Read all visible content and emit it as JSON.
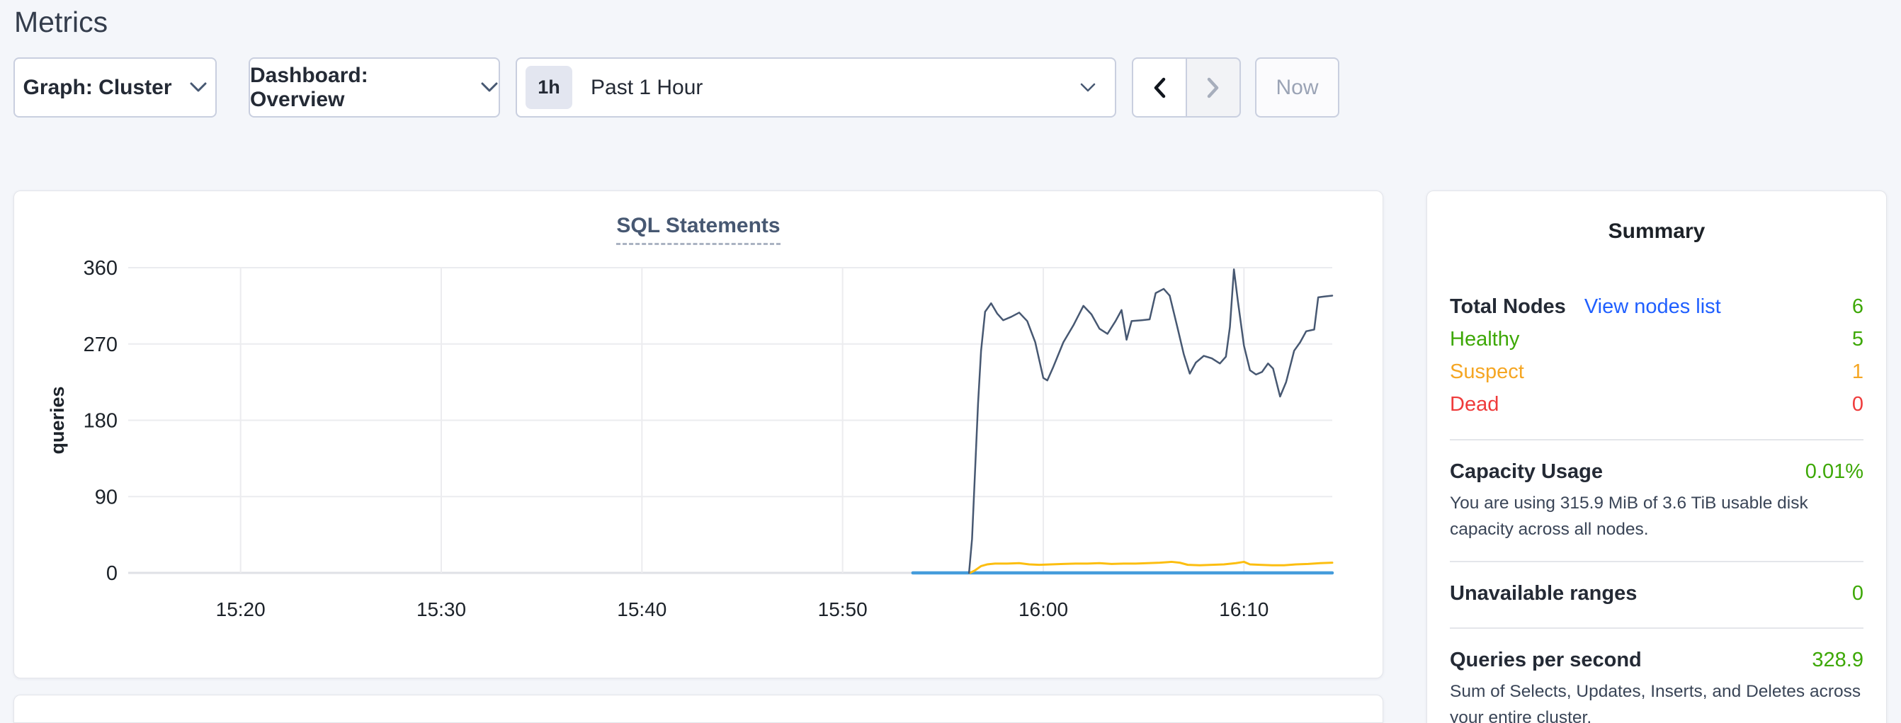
{
  "page": {
    "title": "Metrics"
  },
  "toolbar": {
    "graph_dropdown": {
      "label": "Graph: Cluster"
    },
    "dashboard_dropdown": {
      "label": "Dashboard: Overview"
    },
    "time_window": {
      "badge": "1h",
      "label": "Past 1 Hour"
    },
    "now_button": {
      "label": "Now"
    }
  },
  "chart_data": {
    "type": "line",
    "title": "SQL Statements",
    "xlabel": "",
    "ylabel": "queries",
    "ylim": [
      0,
      360
    ],
    "yticks": [
      0,
      90,
      180,
      270,
      360
    ],
    "x_domain_minutes_after_1500": [
      14.4,
      74.4
    ],
    "xticks": [
      {
        "minutes": 20,
        "label": "15:20"
      },
      {
        "minutes": 30,
        "label": "15:30"
      },
      {
        "minutes": 40,
        "label": "15:40"
      },
      {
        "minutes": 50,
        "label": "15:50"
      },
      {
        "minutes": 60,
        "label": "16:00"
      },
      {
        "minutes": 70,
        "label": "16:10"
      }
    ],
    "grid": true,
    "legend": "none",
    "series": [
      {
        "name": "blue-series",
        "color": "#459cdb",
        "stroke_width": 4.5,
        "points": [
          [
            53.5,
            0
          ],
          [
            74.4,
            0
          ]
        ]
      },
      {
        "name": "yellow-series",
        "color": "#fcbe10",
        "stroke_width": 3,
        "points": [
          [
            56.35,
            0
          ],
          [
            56.6,
            3
          ],
          [
            56.9,
            8
          ],
          [
            57.2,
            10
          ],
          [
            57.6,
            11
          ],
          [
            58.2,
            11
          ],
          [
            58.8,
            11.5
          ],
          [
            59.3,
            10
          ],
          [
            59.8,
            9.5
          ],
          [
            60.4,
            10
          ],
          [
            61.0,
            10.5
          ],
          [
            61.6,
            11
          ],
          [
            62.2,
            11
          ],
          [
            62.8,
            11.5
          ],
          [
            63.4,
            10.5
          ],
          [
            64.0,
            11
          ],
          [
            64.6,
            11
          ],
          [
            65.2,
            11.5
          ],
          [
            65.8,
            12
          ],
          [
            66.4,
            13
          ],
          [
            66.8,
            12
          ],
          [
            67.2,
            9.5
          ],
          [
            67.8,
            9
          ],
          [
            68.4,
            9.5
          ],
          [
            69.0,
            10
          ],
          [
            69.6,
            11.5
          ],
          [
            70.0,
            13
          ],
          [
            70.3,
            10
          ],
          [
            70.8,
            9.5
          ],
          [
            71.4,
            9
          ],
          [
            72.0,
            9
          ],
          [
            72.6,
            10
          ],
          [
            73.2,
            10.5
          ],
          [
            73.8,
            11.5
          ],
          [
            74.4,
            12
          ]
        ]
      },
      {
        "name": "navy-series",
        "color": "#475872",
        "stroke_width": 2.5,
        "points": [
          [
            56.3,
            0
          ],
          [
            56.45,
            40
          ],
          [
            56.6,
            120
          ],
          [
            56.75,
            200
          ],
          [
            56.9,
            262
          ],
          [
            57.1,
            308
          ],
          [
            57.4,
            318
          ],
          [
            57.7,
            306
          ],
          [
            58.0,
            298
          ],
          [
            58.4,
            302
          ],
          [
            58.8,
            307
          ],
          [
            59.2,
            297
          ],
          [
            59.6,
            272
          ],
          [
            60.0,
            230
          ],
          [
            60.2,
            227
          ],
          [
            60.5,
            243
          ],
          [
            61.0,
            272
          ],
          [
            61.5,
            292
          ],
          [
            62.0,
            315
          ],
          [
            62.4,
            305
          ],
          [
            62.8,
            288
          ],
          [
            63.2,
            282
          ],
          [
            63.6,
            297
          ],
          [
            63.9,
            310
          ],
          [
            64.15,
            275
          ],
          [
            64.4,
            297
          ],
          [
            64.9,
            298
          ],
          [
            65.3,
            299
          ],
          [
            65.6,
            330
          ],
          [
            66.0,
            335
          ],
          [
            66.3,
            327
          ],
          [
            66.7,
            288
          ],
          [
            67.0,
            258
          ],
          [
            67.3,
            235
          ],
          [
            67.6,
            248
          ],
          [
            68.0,
            256
          ],
          [
            68.4,
            253
          ],
          [
            68.8,
            247
          ],
          [
            69.1,
            255
          ],
          [
            69.3,
            290
          ],
          [
            69.5,
            358
          ],
          [
            69.7,
            320
          ],
          [
            70.0,
            268
          ],
          [
            70.3,
            239
          ],
          [
            70.6,
            234
          ],
          [
            70.9,
            237
          ],
          [
            71.2,
            247
          ],
          [
            71.45,
            241
          ],
          [
            71.8,
            208
          ],
          [
            72.1,
            225
          ],
          [
            72.5,
            262
          ],
          [
            72.8,
            272
          ],
          [
            73.1,
            285
          ],
          [
            73.5,
            287
          ],
          [
            73.7,
            325
          ],
          [
            74.0,
            326
          ],
          [
            74.4,
            327
          ]
        ]
      }
    ]
  },
  "summary": {
    "title": "Summary",
    "nodes": {
      "label": "Total Nodes",
      "link": "View nodes list",
      "value": "6",
      "rows": [
        {
          "label": "Healthy",
          "value": "5"
        },
        {
          "label": "Suspect",
          "value": "1"
        },
        {
          "label": "Dead",
          "value": "0"
        }
      ]
    },
    "capacity": {
      "label": "Capacity Usage",
      "value": "0.01%",
      "description": "You are using 315.9 MiB of 3.6 TiB usable disk capacity across all nodes."
    },
    "unavailable": {
      "label": "Unavailable ranges",
      "value": "0"
    },
    "qps": {
      "label": "Queries per second",
      "value": "328.9",
      "description": "Sum of Selects, Updates, Inserts, and Deletes across your entire cluster."
    }
  },
  "colors": {
    "page_background": "#f4f6fa",
    "text_dark": "#242a35",
    "text_slate": "#475872",
    "link_blue": "#1f5fff",
    "status_green": "#3da806",
    "status_orange": "#f5a623",
    "status_red": "#ef3b3b",
    "line_navy": "#475872",
    "line_yellow": "#fcbe10",
    "line_blue": "#459cdb",
    "grid_line": "#ebecef"
  }
}
